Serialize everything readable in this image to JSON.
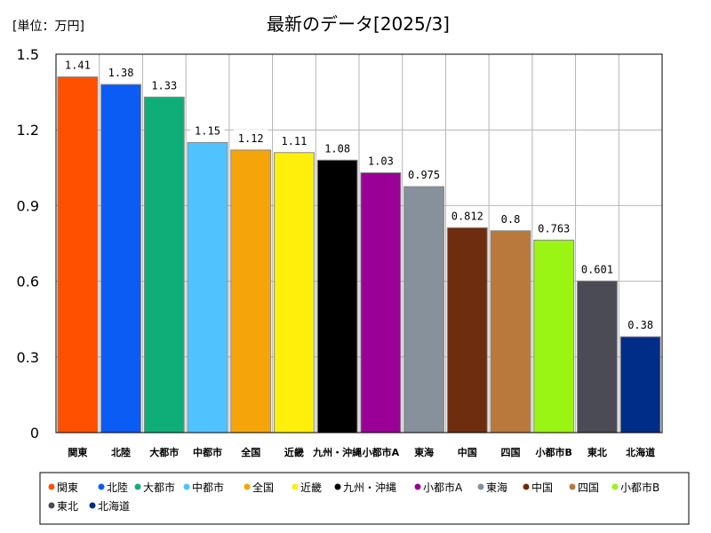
{
  "chart_data": {
    "type": "bar",
    "title": "最新のデータ[2025/3]",
    "unit_label": "[単位：万円]",
    "categories": [
      "関東",
      "北陸",
      "大都市",
      "中都市",
      "全国",
      "近畿",
      "九州・沖縄",
      "小都市A",
      "東海",
      "中国",
      "四国",
      "小都市B",
      "東北",
      "北海道"
    ],
    "values": [
      1.41,
      1.38,
      1.33,
      1.15,
      1.12,
      1.11,
      1.08,
      1.03,
      0.975,
      0.812,
      0.8,
      0.763,
      0.601,
      0.38
    ],
    "value_labels": [
      "1.41",
      "1.38",
      "1.33",
      "1.15",
      "1.12",
      "1.11",
      "1.08",
      "1.03",
      "0.975",
      "0.812",
      "0.8",
      "0.763",
      "0.601",
      "0.38"
    ],
    "colors": [
      "#ff5000",
      "#0a5cf5",
      "#0fae78",
      "#50c3ff",
      "#f5a50a",
      "#ffef0a",
      "#000000",
      "#9b0096",
      "#87919b",
      "#6e2d0f",
      "#b9783c",
      "#9bf514",
      "#4b4b55",
      "#002d87"
    ],
    "yticks": [
      "0",
      "0.3",
      "0.6",
      "0.9",
      "1.2",
      "1.5"
    ],
    "ylim": [
      0,
      1.5
    ],
    "grid": true,
    "legend_position": "bottom",
    "legend": [
      "関東",
      "北陸",
      "大都市",
      "中都市",
      "全国",
      "近畿",
      "九州・沖縄",
      "小都市A",
      "東海",
      "中国",
      "四国",
      "小都市B",
      "東北",
      "北海道"
    ]
  }
}
